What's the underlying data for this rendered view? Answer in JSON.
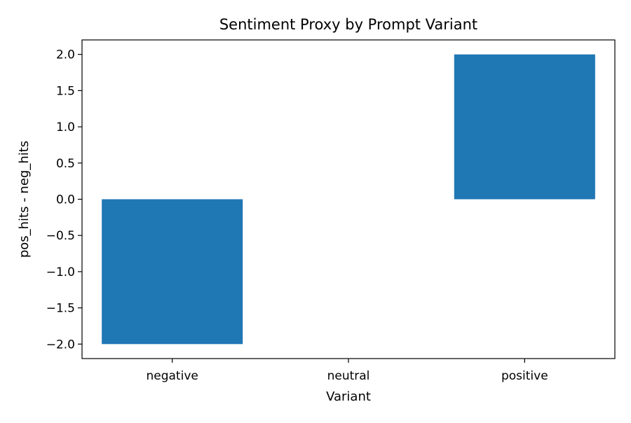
{
  "chart_data": {
    "type": "bar",
    "title": "Sentiment Proxy by Prompt Variant",
    "xlabel": "Variant",
    "ylabel": "pos_hits - neg_hits",
    "categories": [
      "negative",
      "neutral",
      "positive"
    ],
    "values": [
      -2,
      0,
      2
    ],
    "ylim": [
      -2.2,
      2.2
    ],
    "yticks": [
      -2.0,
      -1.5,
      -1.0,
      -0.5,
      0.0,
      0.5,
      1.0,
      1.5,
      2.0
    ],
    "ytick_labels": [
      "−2.0",
      "−1.5",
      "−1.0",
      "−0.5",
      "0.0",
      "0.5",
      "1.0",
      "1.5",
      "2.0"
    ],
    "bar_color": "#1f77b4",
    "grid": false,
    "legend": false
  }
}
